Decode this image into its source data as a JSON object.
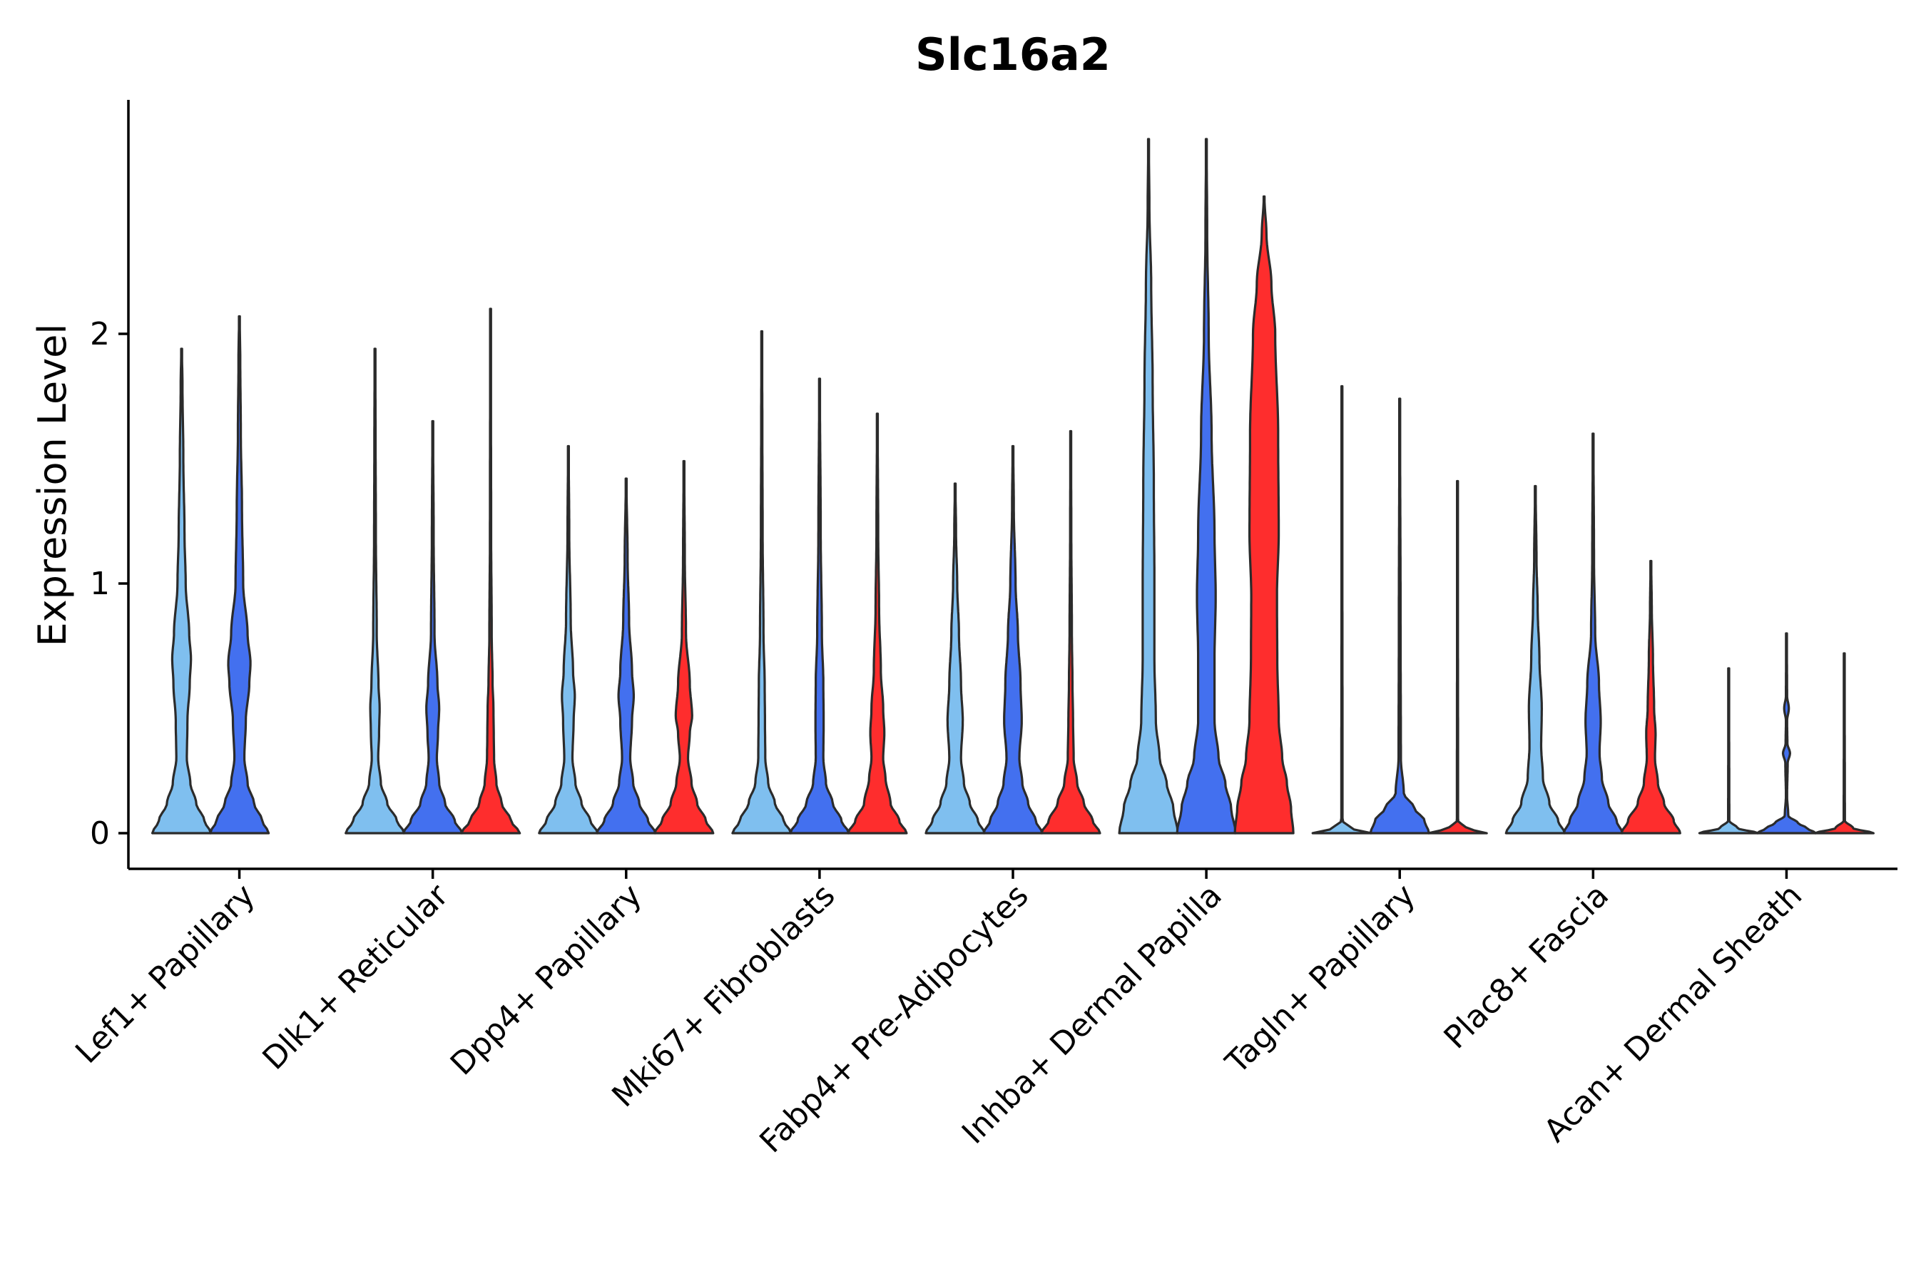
{
  "chart_data": {
    "type": "violin",
    "title": "Slc16a2",
    "ylabel": "Expression Level",
    "xlabel": "",
    "ylim": [
      -0.14,
      2.95
    ],
    "yticks": [
      0,
      1,
      2
    ],
    "legend": "none",
    "grid": false,
    "series_colors": {
      "group_1": "#7fbfef",
      "group_2": "#4370ef",
      "group_3": "#fe2d2d"
    },
    "categories": [
      "Lef1+ Papillary",
      "Dlk1+ Reticular",
      "Dpp4+ Papillary",
      "Mki67+ Fibroblasts",
      "Fabp4+ Pre-Adipocytes",
      "Inhba+ Dermal Papilla",
      "Tagln+ Papillary",
      "Plac8+ Fascia",
      "Acan+ Dermal Sheath"
    ],
    "violins": [
      {
        "category": 0,
        "group": 1,
        "max": 1.94,
        "profile": [
          [
            0,
            1.0
          ],
          [
            0.05,
            0.78
          ],
          [
            0.12,
            0.5
          ],
          [
            0.2,
            0.3
          ],
          [
            0.3,
            0.18
          ],
          [
            0.45,
            0.2
          ],
          [
            0.6,
            0.28
          ],
          [
            0.7,
            0.32
          ],
          [
            0.8,
            0.26
          ],
          [
            1.0,
            0.14
          ],
          [
            1.2,
            0.1
          ],
          [
            1.5,
            0.06
          ],
          [
            1.8,
            0.03
          ],
          [
            1.94,
            0.01
          ]
        ]
      },
      {
        "category": 0,
        "group": 2,
        "max": 2.07,
        "profile": [
          [
            0,
            1.0
          ],
          [
            0.05,
            0.78
          ],
          [
            0.12,
            0.5
          ],
          [
            0.2,
            0.28
          ],
          [
            0.3,
            0.17
          ],
          [
            0.45,
            0.22
          ],
          [
            0.6,
            0.34
          ],
          [
            0.68,
            0.38
          ],
          [
            0.8,
            0.28
          ],
          [
            1.0,
            0.13
          ],
          [
            1.3,
            0.09
          ],
          [
            1.6,
            0.05
          ],
          [
            1.9,
            0.03
          ],
          [
            2.07,
            0.01
          ]
        ]
      },
      {
        "category": 1,
        "group": 1,
        "max": 1.94,
        "profile": [
          [
            0,
            1.0
          ],
          [
            0.05,
            0.75
          ],
          [
            0.12,
            0.42
          ],
          [
            0.2,
            0.2
          ],
          [
            0.3,
            0.11
          ],
          [
            0.4,
            0.14
          ],
          [
            0.5,
            0.16
          ],
          [
            0.6,
            0.12
          ],
          [
            0.8,
            0.06
          ],
          [
            1.2,
            0.03
          ],
          [
            1.6,
            0.02
          ],
          [
            1.94,
            0.01
          ]
        ]
      },
      {
        "category": 1,
        "group": 2,
        "max": 1.65,
        "profile": [
          [
            0,
            1.0
          ],
          [
            0.05,
            0.75
          ],
          [
            0.12,
            0.42
          ],
          [
            0.2,
            0.22
          ],
          [
            0.3,
            0.14
          ],
          [
            0.4,
            0.18
          ],
          [
            0.5,
            0.22
          ],
          [
            0.6,
            0.16
          ],
          [
            0.8,
            0.06
          ],
          [
            1.2,
            0.03
          ],
          [
            1.65,
            0.01
          ]
        ]
      },
      {
        "category": 1,
        "group": 3,
        "max": 2.1,
        "profile": [
          [
            0,
            1.0
          ],
          [
            0.05,
            0.7
          ],
          [
            0.12,
            0.38
          ],
          [
            0.2,
            0.2
          ],
          [
            0.3,
            0.12
          ],
          [
            0.4,
            0.11
          ],
          [
            0.5,
            0.1
          ],
          [
            0.6,
            0.07
          ],
          [
            0.8,
            0.04
          ],
          [
            1.2,
            0.02
          ],
          [
            2.1,
            0.01
          ]
        ]
      },
      {
        "category": 2,
        "group": 1,
        "max": 1.55,
        "profile": [
          [
            0,
            1.0
          ],
          [
            0.05,
            0.75
          ],
          [
            0.12,
            0.45
          ],
          [
            0.2,
            0.24
          ],
          [
            0.3,
            0.14
          ],
          [
            0.45,
            0.18
          ],
          [
            0.55,
            0.22
          ],
          [
            0.65,
            0.16
          ],
          [
            0.85,
            0.08
          ],
          [
            1.2,
            0.03
          ],
          [
            1.55,
            0.01
          ]
        ]
      },
      {
        "category": 2,
        "group": 2,
        "max": 1.42,
        "profile": [
          [
            0,
            1.0
          ],
          [
            0.05,
            0.75
          ],
          [
            0.12,
            0.45
          ],
          [
            0.2,
            0.24
          ],
          [
            0.3,
            0.14
          ],
          [
            0.45,
            0.2
          ],
          [
            0.55,
            0.26
          ],
          [
            0.65,
            0.2
          ],
          [
            0.85,
            0.1
          ],
          [
            1.1,
            0.05
          ],
          [
            1.42,
            0.01
          ]
        ]
      },
      {
        "category": 2,
        "group": 3,
        "max": 1.49,
        "profile": [
          [
            0,
            1.0
          ],
          [
            0.05,
            0.75
          ],
          [
            0.12,
            0.45
          ],
          [
            0.2,
            0.26
          ],
          [
            0.3,
            0.14
          ],
          [
            0.4,
            0.2
          ],
          [
            0.47,
            0.28
          ],
          [
            0.6,
            0.2
          ],
          [
            0.8,
            0.07
          ],
          [
            1.1,
            0.03
          ],
          [
            1.49,
            0.01
          ]
        ]
      },
      {
        "category": 3,
        "group": 1,
        "max": 2.01,
        "profile": [
          [
            0,
            1.0
          ],
          [
            0.05,
            0.75
          ],
          [
            0.12,
            0.45
          ],
          [
            0.2,
            0.22
          ],
          [
            0.3,
            0.12
          ],
          [
            0.45,
            0.11
          ],
          [
            0.6,
            0.1
          ],
          [
            0.8,
            0.06
          ],
          [
            1.2,
            0.03
          ],
          [
            1.6,
            0.02
          ],
          [
            2.01,
            0.01
          ]
        ]
      },
      {
        "category": 3,
        "group": 2,
        "max": 1.82,
        "profile": [
          [
            0,
            1.0
          ],
          [
            0.05,
            0.75
          ],
          [
            0.12,
            0.45
          ],
          [
            0.2,
            0.22
          ],
          [
            0.3,
            0.13
          ],
          [
            0.45,
            0.14
          ],
          [
            0.6,
            0.13
          ],
          [
            0.8,
            0.08
          ],
          [
            1.2,
            0.04
          ],
          [
            1.82,
            0.01
          ]
        ]
      },
      {
        "category": 3,
        "group": 3,
        "max": 1.68,
        "profile": [
          [
            0,
            1.0
          ],
          [
            0.05,
            0.75
          ],
          [
            0.12,
            0.45
          ],
          [
            0.22,
            0.28
          ],
          [
            0.3,
            0.2
          ],
          [
            0.4,
            0.24
          ],
          [
            0.5,
            0.2
          ],
          [
            0.65,
            0.12
          ],
          [
            0.9,
            0.06
          ],
          [
            1.2,
            0.03
          ],
          [
            1.68,
            0.01
          ]
        ]
      },
      {
        "category": 4,
        "group": 1,
        "max": 1.4,
        "profile": [
          [
            0,
            1.0
          ],
          [
            0.05,
            0.78
          ],
          [
            0.12,
            0.5
          ],
          [
            0.2,
            0.3
          ],
          [
            0.3,
            0.2
          ],
          [
            0.45,
            0.26
          ],
          [
            0.6,
            0.2
          ],
          [
            0.8,
            0.13
          ],
          [
            1.0,
            0.07
          ],
          [
            1.2,
            0.03
          ],
          [
            1.4,
            0.01
          ]
        ]
      },
      {
        "category": 4,
        "group": 2,
        "max": 1.55,
        "profile": [
          [
            0,
            1.0
          ],
          [
            0.05,
            0.78
          ],
          [
            0.12,
            0.52
          ],
          [
            0.2,
            0.32
          ],
          [
            0.3,
            0.22
          ],
          [
            0.45,
            0.3
          ],
          [
            0.6,
            0.26
          ],
          [
            0.8,
            0.17
          ],
          [
            1.0,
            0.09
          ],
          [
            1.3,
            0.03
          ],
          [
            1.55,
            0.01
          ]
        ]
      },
      {
        "category": 4,
        "group": 3,
        "max": 1.61,
        "profile": [
          [
            0,
            1.0
          ],
          [
            0.05,
            0.75
          ],
          [
            0.12,
            0.45
          ],
          [
            0.2,
            0.22
          ],
          [
            0.3,
            0.1
          ],
          [
            0.45,
            0.08
          ],
          [
            0.6,
            0.06
          ],
          [
            0.8,
            0.04
          ],
          [
            1.2,
            0.02
          ],
          [
            1.61,
            0.01
          ]
        ]
      },
      {
        "category": 5,
        "group": 1,
        "max": 2.78,
        "profile": [
          [
            0,
            1.0
          ],
          [
            0.1,
            0.85
          ],
          [
            0.2,
            0.62
          ],
          [
            0.3,
            0.38
          ],
          [
            0.45,
            0.25
          ],
          [
            0.7,
            0.2
          ],
          [
            1.0,
            0.2
          ],
          [
            1.4,
            0.18
          ],
          [
            1.8,
            0.14
          ],
          [
            2.2,
            0.09
          ],
          [
            2.5,
            0.03
          ],
          [
            2.78,
            0.01
          ]
        ]
      },
      {
        "category": 5,
        "group": 2,
        "max": 2.78,
        "profile": [
          [
            0,
            1.0
          ],
          [
            0.1,
            0.85
          ],
          [
            0.2,
            0.65
          ],
          [
            0.3,
            0.42
          ],
          [
            0.45,
            0.28
          ],
          [
            0.7,
            0.28
          ],
          [
            0.95,
            0.32
          ],
          [
            1.2,
            0.28
          ],
          [
            1.6,
            0.18
          ],
          [
            2.0,
            0.08
          ],
          [
            2.4,
            0.03
          ],
          [
            2.78,
            0.01
          ]
        ]
      },
      {
        "category": 5,
        "group": 3,
        "max": 2.55,
        "profile": [
          [
            0,
            1.0
          ],
          [
            0.1,
            0.92
          ],
          [
            0.2,
            0.78
          ],
          [
            0.3,
            0.62
          ],
          [
            0.45,
            0.5
          ],
          [
            0.7,
            0.45
          ],
          [
            0.95,
            0.44
          ],
          [
            1.2,
            0.5
          ],
          [
            1.6,
            0.48
          ],
          [
            2.0,
            0.38
          ],
          [
            2.2,
            0.25
          ],
          [
            2.4,
            0.08
          ],
          [
            2.55,
            0.01
          ]
        ]
      },
      {
        "category": 6,
        "group": 1,
        "max": 1.79,
        "profile": [
          [
            0,
            1.0
          ],
          [
            0.02,
            0.3
          ],
          [
            0.05,
            0.02
          ],
          [
            1.79,
            0.01
          ]
        ]
      },
      {
        "category": 6,
        "group": 2,
        "max": 1.74,
        "profile": [
          [
            0,
            1.0
          ],
          [
            0.05,
            0.85
          ],
          [
            0.1,
            0.5
          ],
          [
            0.16,
            0.14
          ],
          [
            0.3,
            0.04
          ],
          [
            0.8,
            0.03
          ],
          [
            1.74,
            0.01
          ]
        ]
      },
      {
        "category": 6,
        "group": 3,
        "max": 1.41,
        "profile": [
          [
            0,
            1.0
          ],
          [
            0.02,
            0.3
          ],
          [
            0.05,
            0.02
          ],
          [
            1.41,
            0.01
          ]
        ]
      },
      {
        "category": 7,
        "group": 1,
        "max": 1.39,
        "profile": [
          [
            0,
            1.0
          ],
          [
            0.05,
            0.78
          ],
          [
            0.12,
            0.48
          ],
          [
            0.22,
            0.26
          ],
          [
            0.35,
            0.2
          ],
          [
            0.5,
            0.22
          ],
          [
            0.7,
            0.14
          ],
          [
            0.9,
            0.08
          ],
          [
            1.1,
            0.04
          ],
          [
            1.39,
            0.01
          ]
        ]
      },
      {
        "category": 7,
        "group": 2,
        "max": 1.6,
        "profile": [
          [
            0,
            1.0
          ],
          [
            0.05,
            0.8
          ],
          [
            0.12,
            0.52
          ],
          [
            0.22,
            0.3
          ],
          [
            0.32,
            0.22
          ],
          [
            0.45,
            0.26
          ],
          [
            0.6,
            0.2
          ],
          [
            0.8,
            0.07
          ],
          [
            1.1,
            0.03
          ],
          [
            1.6,
            0.01
          ]
        ]
      },
      {
        "category": 7,
        "group": 3,
        "max": 1.09,
        "profile": [
          [
            0,
            1.0
          ],
          [
            0.05,
            0.78
          ],
          [
            0.12,
            0.45
          ],
          [
            0.2,
            0.24
          ],
          [
            0.3,
            0.14
          ],
          [
            0.4,
            0.16
          ],
          [
            0.5,
            0.11
          ],
          [
            0.7,
            0.07
          ],
          [
            0.9,
            0.03
          ],
          [
            1.09,
            0.01
          ]
        ]
      },
      {
        "category": 8,
        "group": 1,
        "max": 0.66,
        "profile": [
          [
            0,
            1.0
          ],
          [
            0.02,
            0.3
          ],
          [
            0.05,
            0.02
          ],
          [
            0.66,
            0.01
          ]
        ]
      },
      {
        "category": 8,
        "group": 2,
        "max": 0.8,
        "profile": [
          [
            0,
            1.0
          ],
          [
            0.02,
            0.7
          ],
          [
            0.04,
            0.4
          ],
          [
            0.07,
            0.06
          ],
          [
            0.15,
            0.02
          ],
          [
            0.28,
            0.04
          ],
          [
            0.32,
            0.12
          ],
          [
            0.36,
            0.03
          ],
          [
            0.45,
            0.02
          ],
          [
            0.5,
            0.08
          ],
          [
            0.55,
            0.02
          ],
          [
            0.8,
            0.01
          ]
        ]
      },
      {
        "category": 8,
        "group": 3,
        "max": 0.72,
        "profile": [
          [
            0,
            1.0
          ],
          [
            0.02,
            0.3
          ],
          [
            0.05,
            0.02
          ],
          [
            0.72,
            0.01
          ]
        ]
      }
    ]
  }
}
